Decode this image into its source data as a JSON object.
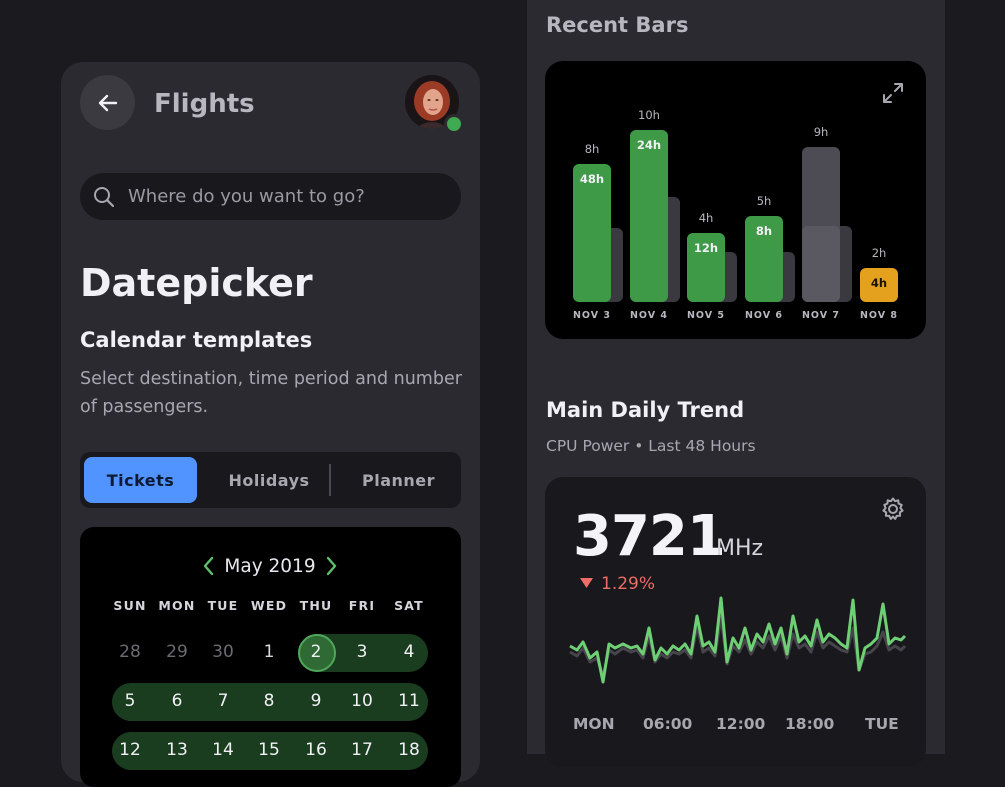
{
  "left": {
    "title": "Flights",
    "search_placeholder": "Where do you want to go?",
    "heading": "Datepicker",
    "subheading": "Calendar templates",
    "description": "Select destination, time period and number of passengers.",
    "segments": [
      "Tickets",
      "Holidays",
      "Planner"
    ],
    "active_segment": "Tickets",
    "calendar": {
      "month": "May 2019",
      "weekdays": [
        "SUN",
        "MON",
        "TUE",
        "WED",
        "THU",
        "FRI",
        "SAT"
      ],
      "week1": [
        "28",
        "29",
        "30",
        "1",
        "2",
        "3",
        "4"
      ],
      "week2": [
        "5",
        "6",
        "7",
        "8",
        "9",
        "10",
        "11"
      ],
      "week3": [
        "12",
        "13",
        "14",
        "15",
        "16",
        "17",
        "18"
      ],
      "selected_start": "2"
    }
  },
  "right": {
    "recent_title": "Recent Bars",
    "trend_title": "Main Daily Trend",
    "trend_subtitle": "CPU Power • Last 48 Hours",
    "cpu_value": "3721",
    "cpu_unit": "MHz",
    "cpu_change": "1.29%",
    "x_labels": [
      "MON",
      "06:00",
      "12:00",
      "18:00",
      "TUE"
    ]
  },
  "colors": {
    "accent_blue": "#5193ff",
    "green": "#3f9a48",
    "amber": "#e4a11e",
    "red": "#f06c66"
  },
  "chart_data": {
    "type": "bar",
    "categories": [
      "NOV 3",
      "NOV 4",
      "NOV 5",
      "NOV 6",
      "NOV 7",
      "NOV 8"
    ],
    "top_labels": [
      "8h",
      "10h",
      "4h",
      "5h",
      "9h",
      "2h"
    ],
    "bar_labels": [
      "48h",
      "24h",
      "12h",
      "8h",
      "",
      "4h"
    ],
    "series": [
      {
        "values": [
          8,
          10,
          4,
          5,
          9,
          2
        ]
      },
      {
        "values": [
          4.3,
          6.1,
          2.9,
          2.9,
          4.4,
          0
        ]
      }
    ],
    "bar_colors": [
      "green",
      "green",
      "green",
      "green",
      "gray",
      "amber"
    ]
  }
}
